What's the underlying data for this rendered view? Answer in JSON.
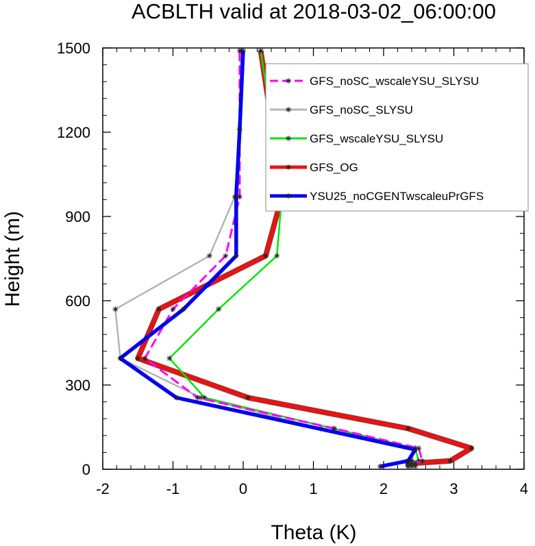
{
  "chart_data": {
    "type": "line",
    "title": "ACBLTH valid at 2018-03-02_06:00:00",
    "xlabel": "Theta (K)",
    "ylabel": "Height (m)",
    "xlim": [
      -2,
      4
    ],
    "ylim": [
      0,
      1500
    ],
    "xticks": [
      -2,
      -1,
      0,
      1,
      2,
      3,
      4
    ],
    "yticks": [
      0,
      300,
      600,
      900,
      1200,
      1500
    ],
    "grid": false,
    "legend_position": "top-right",
    "series": [
      {
        "name": "GFS_noSC_wscaleYSU_SLYSU",
        "color": "#ff00ff",
        "dash": "dashed",
        "points": [
          [
            2.45,
            10
          ],
          [
            2.45,
            20
          ],
          [
            2.55,
            30
          ],
          [
            2.5,
            75
          ],
          [
            1.3,
            145
          ],
          [
            -0.65,
            255
          ],
          [
            -1.4,
            395
          ],
          [
            -1.0,
            570
          ],
          [
            -0.25,
            760
          ],
          [
            -0.05,
            970
          ],
          [
            -0.05,
            1210
          ],
          [
            -0.05,
            1490
          ]
        ]
      },
      {
        "name": "GFS_noSC_SLYSU",
        "color": "#b4b4b4",
        "dash": "solid",
        "points": [
          [
            2.35,
            10
          ],
          [
            2.35,
            20
          ],
          [
            2.4,
            30
          ],
          [
            2.45,
            75
          ],
          [
            1.1,
            145
          ],
          [
            -0.6,
            255
          ],
          [
            -1.75,
            395
          ],
          [
            -1.82,
            570
          ],
          [
            -0.48,
            760
          ],
          [
            -0.12,
            970
          ],
          [
            -0.05,
            1210
          ],
          [
            -0.03,
            1490
          ]
        ]
      },
      {
        "name": "GFS_wscaleYSU_SLYSU",
        "color": "#00e600",
        "dash": "solid",
        "points": [
          [
            2.4,
            10
          ],
          [
            2.4,
            20
          ],
          [
            2.5,
            30
          ],
          [
            2.45,
            75
          ],
          [
            1.28,
            145
          ],
          [
            -0.55,
            255
          ],
          [
            -1.05,
            395
          ],
          [
            -0.35,
            570
          ],
          [
            0.48,
            760
          ],
          [
            0.55,
            970
          ],
          [
            0.42,
            1210
          ],
          [
            0.25,
            1490
          ]
        ]
      },
      {
        "name": "GFS_OG",
        "color": "#ee1111",
        "dash": "solid",
        "points": [
          [
            2.35,
            10
          ],
          [
            2.35,
            20
          ],
          [
            2.95,
            30
          ],
          [
            3.25,
            75
          ],
          [
            2.35,
            145
          ],
          [
            0.07,
            255
          ],
          [
            -1.5,
            395
          ],
          [
            -1.2,
            570
          ],
          [
            0.32,
            760
          ],
          [
            0.55,
            970
          ],
          [
            0.42,
            1210
          ],
          [
            0.25,
            1490
          ]
        ]
      },
      {
        "name": "YSU25_noCGENTwscaleuPrGFS",
        "color": "#0000ee",
        "dash": "solid",
        "points": [
          [
            1.95,
            10
          ],
          [
            2.35,
            30
          ],
          [
            2.45,
            70
          ],
          [
            -0.95,
            255
          ],
          [
            -1.75,
            395
          ],
          [
            -0.85,
            570
          ],
          [
            -0.1,
            760
          ],
          [
            -0.1,
            970
          ],
          [
            -0.05,
            1210
          ],
          [
            0.0,
            1490
          ]
        ]
      }
    ]
  }
}
